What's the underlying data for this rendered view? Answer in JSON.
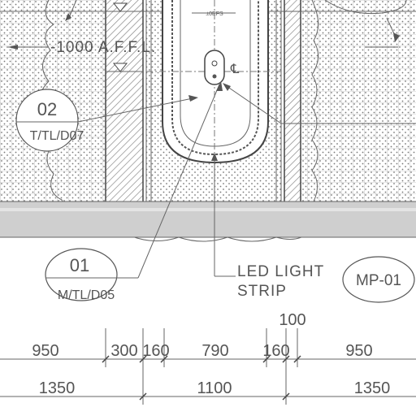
{
  "level_note": "-1000  A.F.F.L.",
  "centerline_symbol": "℄",
  "dim_small_text": "±0EFS",
  "tags": {
    "tag_02": {
      "number": "02",
      "code": "T/TL/D07"
    },
    "tag_01": {
      "number": "01",
      "code": "M/TL/D05"
    },
    "mp_tag": "MP-01"
  },
  "led_label": {
    "line1": "LED  LIGHT",
    "line2": "STRIP"
  },
  "dimensions": {
    "row1": [
      "950",
      "300",
      "160",
      "790",
      "160",
      "950"
    ],
    "above_row1": "100",
    "row2": [
      "1350",
      "1100",
      "1350"
    ]
  },
  "colors": {
    "line": "#555555",
    "band": "#c8c8c8",
    "text": "#555555"
  }
}
